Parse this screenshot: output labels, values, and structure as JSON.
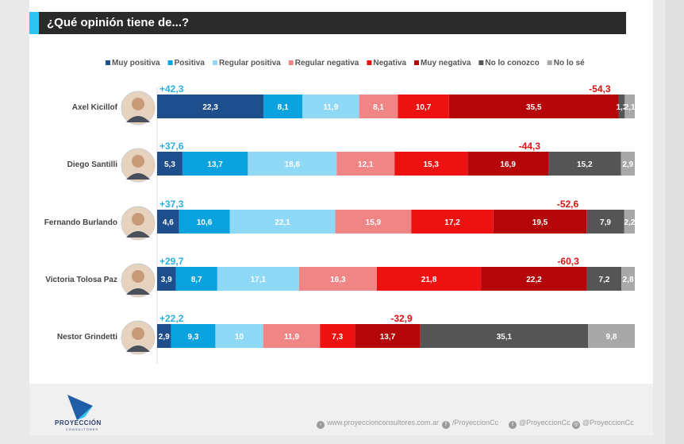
{
  "title": "¿Qué opinión tiene de...?",
  "footer": {
    "brand_name": "PROYECCIÓN",
    "brand_sub": "CONSULTORES",
    "website": "www.proyeccionconsultores.com.ar",
    "facebook": "/ProyeccionCc",
    "twitter": "@ProyeccionCc",
    "instagram": "@ProyeccionCc"
  },
  "colors": {
    "accent": "#2ec4f0",
    "title_bg": "#2a2a2a",
    "positive_label": "#2ab0e0",
    "negative_label": "#e01010"
  },
  "chart_data": {
    "type": "bar",
    "orientation": "horizontal-stacked-100",
    "title": "¿Qué opinión tiene de...?",
    "categories": [
      "Axel Kicillof",
      "Diego Santilli",
      "Fernando Burlando",
      "Victoria Tolosa Paz",
      "Nestor Grindetti"
    ],
    "series": [
      {
        "name": "Muy positiva",
        "color": "#1f4e8c",
        "text_color": "#ffffff",
        "values": [
          22.3,
          5.3,
          4.6,
          3.9,
          2.9
        ]
      },
      {
        "name": "Positiva",
        "color": "#0aa3e0",
        "text_color": "#ffffff",
        "values": [
          8.1,
          13.7,
          10.6,
          8.7,
          9.3
        ]
      },
      {
        "name": "Regular positiva",
        "color": "#8fd9f7",
        "text_color": "#ffffff",
        "values": [
          11.9,
          18.6,
          22.1,
          17.1,
          10
        ]
      },
      {
        "name": "Regular negativa",
        "color": "#f08585",
        "text_color": "#ffffff",
        "values": [
          8.1,
          12.1,
          15.9,
          16.3,
          11.9
        ]
      },
      {
        "name": "Negativa",
        "color": "#ee1111",
        "text_color": "#ffffff",
        "values": [
          10.7,
          15.3,
          17.2,
          21.8,
          7.3
        ]
      },
      {
        "name": "Muy negativa",
        "color": "#b5070a",
        "text_color": "#ffffff",
        "values": [
          35.5,
          16.9,
          19.5,
          22.2,
          13.7
        ]
      },
      {
        "name": "No lo conozco",
        "color": "#555555",
        "text_color": "#ffffff",
        "values": [
          1.3,
          15.2,
          7.9,
          7.2,
          35.1
        ]
      },
      {
        "name": "No lo sé",
        "color": "#a8a8a8",
        "text_color": "#ffffff",
        "values": [
          2.1,
          2.9,
          2.2,
          2.8,
          9.8
        ]
      }
    ],
    "value_labels": [
      [
        "22,3",
        "8,1",
        "11,9",
        "8,1",
        "10,7",
        "35,5",
        "1,3",
        "2,1"
      ],
      [
        "5,3",
        "13,7",
        "18,6",
        "12,1",
        "15,3",
        "16,9",
        "15,2",
        "2,9"
      ],
      [
        "4,6",
        "10,6",
        "22,1",
        "15,9",
        "17,2",
        "19,5",
        "7,9",
        "2,2"
      ],
      [
        "3,9",
        "8,7",
        "17,1",
        "16,3",
        "21,8",
        "22,2",
        "7,2",
        "2,8"
      ],
      [
        "2,9",
        "9,3",
        "10",
        "11,9",
        "7,3",
        "13,7",
        "35,1",
        "9,8"
      ]
    ],
    "positive_totals": [
      "+42,3",
      "+37,6",
      "+37,3",
      "+29,7",
      "+22,2"
    ],
    "negative_totals": [
      "-54,3",
      "-44,3",
      "-52,6",
      "-60,3",
      "-32,9"
    ],
    "xlim": [
      0,
      100
    ],
    "legend_position": "top"
  }
}
